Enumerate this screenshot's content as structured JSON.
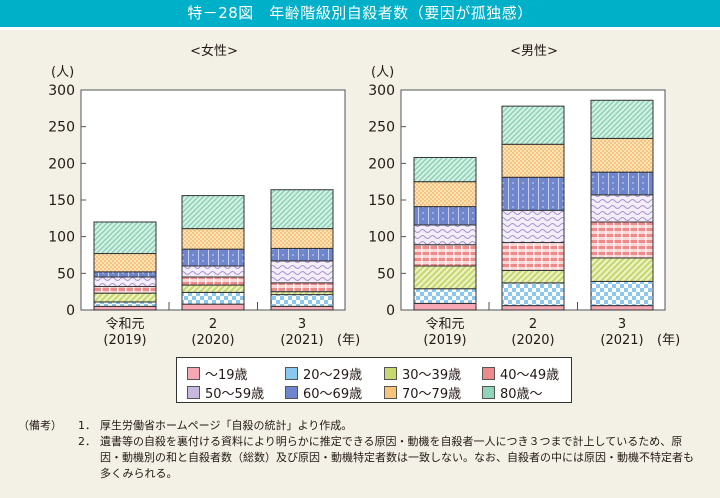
{
  "header": {
    "title": "特－28図　年齢階級別自殺者数（要因が孤独感）"
  },
  "legend": [
    {
      "label": "～19歳",
      "key": "a"
    },
    {
      "label": "20～29歳",
      "key": "b"
    },
    {
      "label": "30～39歳",
      "key": "c"
    },
    {
      "label": "40～49歳",
      "key": "d"
    },
    {
      "label": "50～59歳",
      "key": "e"
    },
    {
      "label": "60～69歳",
      "key": "f"
    },
    {
      "label": "70～79歳",
      "key": "g"
    },
    {
      "label": "80歳～",
      "key": "h"
    }
  ],
  "series_colors": {
    "a": "#f4a8b4",
    "b": "#8cc8ee",
    "c": "#c8d870",
    "d": "#ee8a8a",
    "e": "#c8b8e0",
    "f": "#6f86cf",
    "g": "#f8c37a",
    "h": "#8fd4b8"
  },
  "notes": {
    "label": "（備考）",
    "items": [
      {
        "num": "1．",
        "text": "厚生労働省ホームページ「自殺の統計」より作成。"
      },
      {
        "num": "2．",
        "text": "遺書等の自殺を裏付ける資料により明らかに推定できる原因・動機を自殺者一人につき３つまで計上しているため、原因・動機別の和と自殺者数（総数）及び原因・動機特定者数は一致しない。なお、自殺者の中には原因・動機不特定者も多くみられる。"
      }
    ]
  },
  "chart_data": [
    {
      "type": "bar",
      "stacked": true,
      "title": "<女性>",
      "ylabel": "(人)",
      "xlabel_suffix": "(年)",
      "ylim": [
        0,
        300
      ],
      "yticks": [
        0,
        50,
        100,
        150,
        200,
        250,
        300
      ],
      "categories": [
        [
          "令和元",
          "(2019)"
        ],
        [
          "2",
          "(2020)"
        ],
        [
          "3",
          "(2021)"
        ]
      ],
      "series": [
        {
          "name": "～19歳",
          "key": "a",
          "values": [
            5,
            8,
            5
          ]
        },
        {
          "name": "20～29歳",
          "key": "b",
          "values": [
            6,
            16,
            16
          ]
        },
        {
          "name": "30～39歳",
          "key": "c",
          "values": [
            12,
            10,
            4
          ]
        },
        {
          "name": "40～49歳",
          "key": "d",
          "values": [
            9,
            11,
            12
          ]
        },
        {
          "name": "50～59歳",
          "key": "e",
          "values": [
            13,
            15,
            30
          ]
        },
        {
          "name": "60～69歳",
          "key": "f",
          "values": [
            7,
            23,
            17
          ]
        },
        {
          "name": "70～79歳",
          "key": "g",
          "values": [
            25,
            28,
            27
          ]
        },
        {
          "name": "80歳～",
          "key": "h",
          "values": [
            43,
            45,
            53
          ]
        }
      ],
      "totals": [
        120,
        156,
        164
      ],
      "grid": false
    },
    {
      "type": "bar",
      "stacked": true,
      "title": "<男性>",
      "ylabel": "(人)",
      "xlabel_suffix": "(年)",
      "ylim": [
        0,
        300
      ],
      "yticks": [
        0,
        50,
        100,
        150,
        200,
        250,
        300
      ],
      "categories": [
        [
          "令和元",
          "(2019)"
        ],
        [
          "2",
          "(2020)"
        ],
        [
          "3",
          "(2021)"
        ]
      ],
      "series": [
        {
          "name": "～19歳",
          "key": "a",
          "values": [
            9,
            6,
            6
          ]
        },
        {
          "name": "20～29歳",
          "key": "b",
          "values": [
            20,
            31,
            33
          ]
        },
        {
          "name": "30～39歳",
          "key": "c",
          "values": [
            31,
            17,
            32
          ]
        },
        {
          "name": "40～49歳",
          "key": "d",
          "values": [
            29,
            38,
            49
          ]
        },
        {
          "name": "50～59歳",
          "key": "e",
          "values": [
            27,
            44,
            37
          ]
        },
        {
          "name": "60～69歳",
          "key": "f",
          "values": [
            25,
            45,
            31
          ]
        },
        {
          "name": "70～79歳",
          "key": "g",
          "values": [
            34,
            45,
            46
          ]
        },
        {
          "name": "80歳～",
          "key": "h",
          "values": [
            33,
            52,
            52
          ]
        }
      ],
      "totals": [
        208,
        278,
        286
      ],
      "grid": false
    }
  ]
}
